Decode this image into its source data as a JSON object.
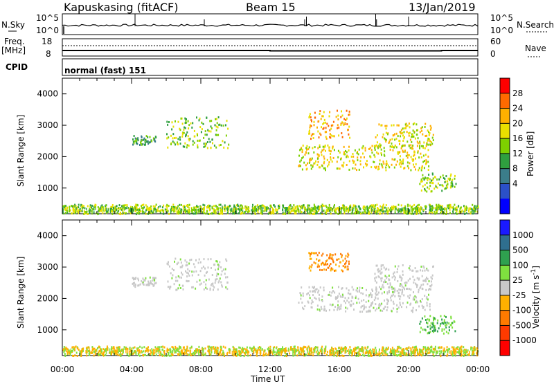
{
  "header": {
    "station": "Kapuskasing (fitACF)",
    "beam": "Beam 15",
    "date": "13/Jan/2019"
  },
  "nsky_panel": {
    "left_label": "N.Sky",
    "left_ticks": [
      "10^5",
      "10^0"
    ],
    "right_label": "N.Search",
    "right_ticks": [
      "10^5",
      "10^0"
    ]
  },
  "freq_panel": {
    "left_label_line1": "Freq.",
    "left_label_line2": "[MHz]",
    "left_ticks": [
      "18",
      "8"
    ],
    "right_label": "Nave",
    "right_ticks": [
      "60",
      "0"
    ],
    "freq_steps": [
      {
        "start_hour": 0,
        "end_hour": 12,
        "value": 8
      },
      {
        "start_hour": 12,
        "end_hour": 21.9,
        "value": 11
      },
      {
        "start_hour": 21.9,
        "end_hour": 24,
        "value": 8
      }
    ]
  },
  "cpid_panel": {
    "label": "CPID",
    "text": "normal (fast) 151"
  },
  "x_axis": {
    "label": "Time UT",
    "ticks": [
      "00:00",
      "04:00",
      "08:00",
      "12:00",
      "16:00",
      "20:00",
      "00:00"
    ]
  },
  "chart_data": [
    {
      "type": "heatmap",
      "name": "power",
      "ylabel": "Slant Range [km]",
      "y_ticks": [
        "4000",
        "3000",
        "2000",
        "1000"
      ],
      "ylim": [
        180,
        4500
      ],
      "xlim_hours": [
        0,
        24
      ],
      "colorbar_label": "Power [dB]",
      "colorbar_ticks": [
        "28",
        "24",
        "20",
        "16",
        "12",
        "8",
        "4"
      ],
      "colorbar_colors": [
        "#ff0000",
        "#ff6a00",
        "#ffb000",
        "#e9e000",
        "#7ed000",
        "#2f9f3f",
        "#3b7d8a",
        "#2b50c8",
        "#0000ff"
      ],
      "regions": [
        {
          "t0": 4.0,
          "t1": 5.4,
          "r0": 2400,
          "r1": 2700,
          "level": 8
        },
        {
          "t0": 6.0,
          "t1": 9.6,
          "r0": 2300,
          "r1": 3300,
          "level": 12
        },
        {
          "t0": 13.6,
          "t1": 21.2,
          "r0": 1600,
          "r1": 2400,
          "level": 16
        },
        {
          "t0": 14.2,
          "t1": 16.6,
          "r0": 2600,
          "r1": 3500,
          "level": 20
        },
        {
          "t0": 18.0,
          "t1": 21.4,
          "r0": 2300,
          "r1": 3100,
          "level": 16
        },
        {
          "t0": 20.6,
          "t1": 22.7,
          "r0": 900,
          "r1": 1500,
          "level": 12
        },
        {
          "t0": 0.0,
          "t1": 24.0,
          "r0": 200,
          "r1": 500,
          "level": 12
        }
      ]
    },
    {
      "type": "heatmap",
      "name": "velocity",
      "ylabel": "Slant Range [km]",
      "y_ticks": [
        "4000",
        "3000",
        "2000",
        "1000"
      ],
      "ylim": [
        180,
        4500
      ],
      "xlim_hours": [
        0,
        24
      ],
      "colorbar_label_main": "Velocity [m s",
      "colorbar_label_sup": "-1",
      "colorbar_label_end": "]",
      "colorbar_ticks": [
        "1000",
        "500",
        "100",
        "25",
        "-25",
        "-100",
        "-500",
        "-1000"
      ],
      "colorbar_colors": [
        "#1a1aff",
        "#2f6f8f",
        "#2fa04f",
        "#7fe03f",
        "#c8c8c8",
        "#ffb000",
        "#ff7a00",
        "#ff3a00",
        "#ff0000"
      ],
      "regions": [
        {
          "t0": 4.0,
          "t1": 5.4,
          "r0": 2400,
          "r1": 2700,
          "level": 0
        },
        {
          "t0": 6.0,
          "t1": 9.6,
          "r0": 2300,
          "r1": 3300,
          "level": 0
        },
        {
          "t0": 13.6,
          "t1": 21.2,
          "r0": 1600,
          "r1": 2400,
          "level": 0
        },
        {
          "t0": 14.2,
          "t1": 16.6,
          "r0": 2900,
          "r1": 3500,
          "level": -300
        },
        {
          "t0": 18.0,
          "t1": 21.4,
          "r0": 2300,
          "r1": 3100,
          "level": 0
        },
        {
          "t0": 20.6,
          "t1": 22.7,
          "r0": 900,
          "r1": 1500,
          "level": 100
        },
        {
          "t0": 0.0,
          "t1": 24.0,
          "r0": 200,
          "r1": 500,
          "level": 50
        }
      ]
    }
  ]
}
